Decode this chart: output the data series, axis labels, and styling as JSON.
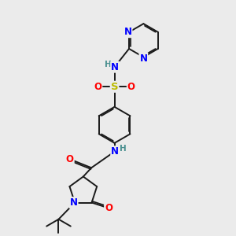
{
  "bg_color": "#ebebeb",
  "bond_color": "#1a1a1a",
  "bond_width": 1.4,
  "dbo": 0.06,
  "atom_colors": {
    "N": "#0000ff",
    "O": "#ff0000",
    "S": "#bbbb00",
    "C": "#1a1a1a",
    "H_label": "#4a9090"
  },
  "fs": 8.5,
  "fs_small": 7.5
}
